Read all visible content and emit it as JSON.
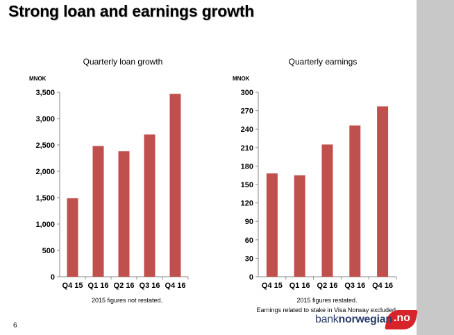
{
  "page": {
    "title": "Strong loan and earnings growth",
    "page_number": "6"
  },
  "logo": {
    "part1": "bank",
    "part2": "norwegian",
    "part3": ".no"
  },
  "colors": {
    "bar": "#c0504d",
    "sidebar": "#c8c8c8",
    "logo_blue": "#2a3f6c",
    "logo_red": "#d7242a"
  },
  "chart_data": [
    {
      "type": "bar",
      "title": "Quarterly loan growth",
      "ylabel": "MNOK",
      "categories": [
        "Q4 15",
        "Q1 16",
        "Q2 16",
        "Q3 16",
        "Q4 16"
      ],
      "values": [
        1490,
        2480,
        2380,
        2700,
        3470
      ],
      "ylim": [
        0,
        3500
      ],
      "yticks": [
        0,
        500,
        1000,
        1500,
        2000,
        2500,
        3000,
        3500
      ],
      "ytick_labels": [
        "0",
        "500",
        "1,000",
        "1,500",
        "2,000",
        "2,500",
        "3,000",
        "3,500"
      ],
      "grid": false,
      "notes": [
        "2015 figures not restated."
      ]
    },
    {
      "type": "bar",
      "title": "Quarterly earnings",
      "ylabel": "MNOK",
      "categories": [
        "Q4 15",
        "Q1 16",
        "Q2 16",
        "Q3 16",
        "Q4 16"
      ],
      "values": [
        168,
        165,
        215,
        246,
        277
      ],
      "ylim": [
        0,
        300
      ],
      "yticks": [
        0,
        30,
        60,
        90,
        120,
        150,
        180,
        210,
        240,
        270,
        300
      ],
      "ytick_labels": [
        "0",
        "30",
        "60",
        "90",
        "120",
        "150",
        "180",
        "210",
        "240",
        "270",
        "300"
      ],
      "grid": false,
      "notes": [
        "2015 figures restated.",
        "Earnings related to stake in Visa Norway excluded."
      ]
    }
  ]
}
